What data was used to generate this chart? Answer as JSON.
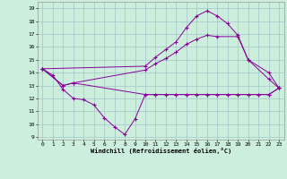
{
  "xlabel": "Windchill (Refroidissement éolien,°C)",
  "bg_color": "#cceedd",
  "grid_color": "#aacccc",
  "line_color": "#880099",
  "ylim": [
    8.8,
    19.5
  ],
  "xlim": [
    -0.5,
    23.5
  ],
  "yticks": [
    9,
    10,
    11,
    12,
    13,
    14,
    15,
    16,
    17,
    18,
    19
  ],
  "xticks": [
    0,
    1,
    2,
    3,
    4,
    5,
    6,
    7,
    8,
    9,
    10,
    11,
    12,
    13,
    14,
    15,
    16,
    17,
    18,
    19,
    20,
    21,
    22,
    23
  ],
  "series": [
    {
      "x": [
        0,
        1,
        2,
        3,
        4,
        5,
        6,
        7,
        8,
        9,
        10,
        11,
        12,
        13,
        14,
        15,
        16,
        17,
        18,
        19,
        20,
        21,
        22,
        23
      ],
      "y": [
        14.3,
        13.8,
        12.7,
        12.0,
        11.9,
        11.5,
        10.5,
        9.8,
        9.2,
        10.4,
        12.3,
        12.3,
        12.3,
        12.3,
        12.3,
        12.3,
        12.3,
        12.3,
        12.3,
        12.3,
        12.3,
        12.3,
        12.3,
        12.8
      ]
    },
    {
      "x": [
        0,
        10,
        11,
        12,
        13,
        14,
        15,
        16,
        17,
        18,
        19,
        20,
        22,
        23
      ],
      "y": [
        14.3,
        14.5,
        15.2,
        15.8,
        16.4,
        17.5,
        18.4,
        18.8,
        18.4,
        17.8,
        16.9,
        15.0,
        13.5,
        12.8
      ]
    },
    {
      "x": [
        0,
        2,
        3,
        10,
        11,
        12,
        13,
        14,
        15,
        16,
        17,
        19,
        20,
        22,
        23
      ],
      "y": [
        14.3,
        13.0,
        13.2,
        14.2,
        14.7,
        15.1,
        15.6,
        16.2,
        16.6,
        16.9,
        16.8,
        16.8,
        15.0,
        14.0,
        12.8
      ]
    },
    {
      "x": [
        0,
        2,
        3,
        10,
        11,
        12,
        13,
        14,
        15,
        16,
        17,
        18,
        19,
        20,
        21,
        22,
        23
      ],
      "y": [
        14.3,
        13.0,
        13.2,
        12.3,
        12.3,
        12.3,
        12.3,
        12.3,
        12.3,
        12.3,
        12.3,
        12.3,
        12.3,
        12.3,
        12.3,
        12.3,
        12.8
      ]
    }
  ]
}
